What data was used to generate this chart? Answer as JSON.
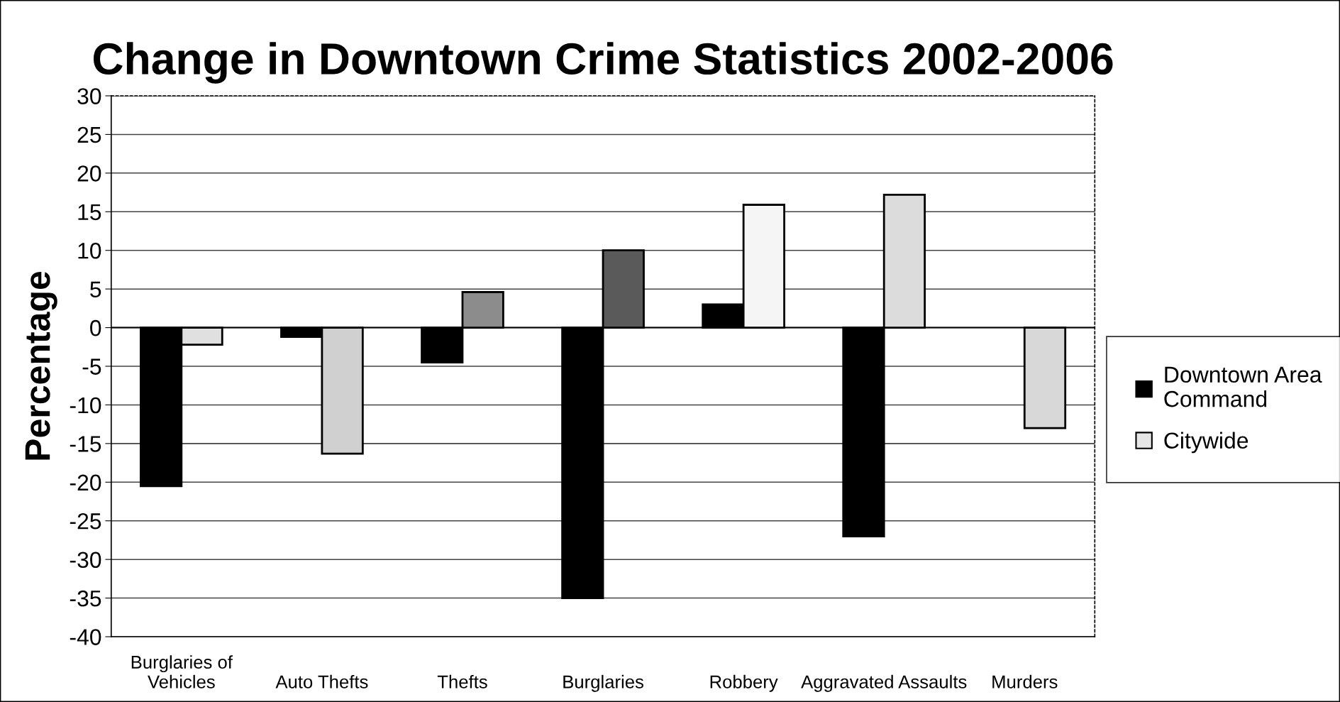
{
  "chart_data": {
    "type": "bar",
    "title": "Change in Downtown Crime Statistics 2002-2006",
    "ylabel": "Percentage",
    "categories": [
      "Burglaries of\nVehicles",
      "Auto Thefts",
      "Thefts",
      "Burglaries",
      "Robbery",
      "Aggravated Assaults",
      "Murders"
    ],
    "series": [
      {
        "name": "Downtown Area Command",
        "color": "#000000",
        "values": [
          -20.5,
          -1.2,
          -4.5,
          -35,
          3,
          -27,
          null
        ]
      },
      {
        "name": "Citywide",
        "color": "#e6e6e6",
        "colors": [
          "#e0e0e0",
          "#d0d0d0",
          "#8c8c8c",
          "#5a5a5a",
          "#f5f5f5",
          "#dcdcdc",
          "#d8d8d8"
        ],
        "values": [
          -2.2,
          -16.3,
          4.6,
          10,
          15.9,
          17.2,
          -13
        ]
      }
    ],
    "ylim": [
      -40,
      30
    ],
    "yticks": [
      30,
      25,
      20,
      15,
      10,
      5,
      0,
      -5,
      -10,
      -15,
      -20,
      -25,
      -30,
      -35,
      -40
    ],
    "grid": "y",
    "legend": "right"
  }
}
